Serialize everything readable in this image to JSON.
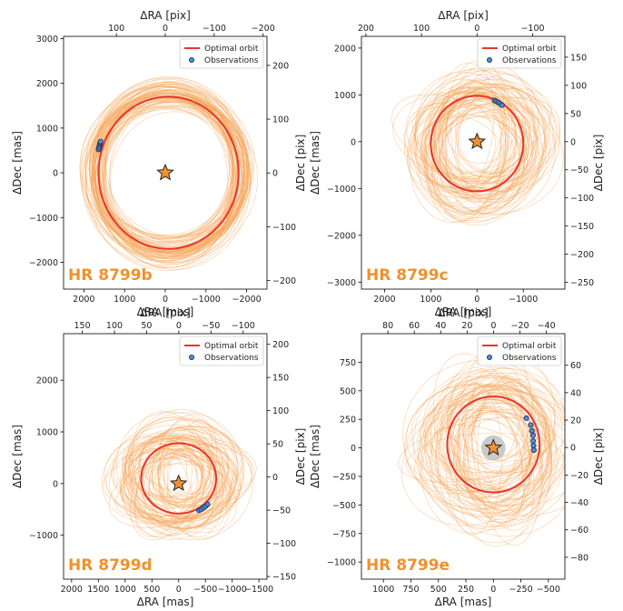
{
  "colors": {
    "orbit_fill": "#f0912f",
    "orbit_line": "#f5a559",
    "optimal": "#e8352b",
    "obs_fill": "#4a8fdc",
    "obs_edge": "#1a2a4a",
    "star": "#f0912f",
    "planet_label": "#f0912f",
    "mask": "#bdbdbd"
  },
  "legend": {
    "optimal": "Optimal orbit",
    "observations": "Observations"
  },
  "chart_data": [
    {
      "type": "scatter",
      "planet": "HR 8799b",
      "xlabel": "ΔRA [mas]",
      "ylabel": "ΔDec [mas]",
      "x2label": "ΔRA [pix]",
      "y2label": "ΔDec [pix]",
      "xlim": [
        2500,
        -2500
      ],
      "ylim": [
        -2600,
        3050
      ],
      "x2lim": [
        208,
        -208
      ],
      "y2lim": [
        -216,
        254
      ],
      "xticks": [
        2000,
        1000,
        0,
        -1000,
        -2000
      ],
      "xticklabels": [
        "2000",
        "1000",
        "0",
        "−1000",
        "−2000"
      ],
      "yticks": [
        -2000,
        -1000,
        0,
        1000,
        2000,
        3000
      ],
      "yticklabels": [
        "−2000",
        "−1000",
        "0",
        "1000",
        "2000",
        "3000"
      ],
      "x2ticks": [
        100,
        0,
        -100,
        -200
      ],
      "x2ticklabels": [
        "100",
        "0",
        "−100",
        "−200"
      ],
      "y2ticks": [
        -200,
        -100,
        0,
        100,
        200
      ],
      "y2ticklabels": [
        "−200",
        "−100",
        "0",
        "100",
        "200"
      ],
      "optimal_orbit": {
        "cx": -80,
        "cy": 0,
        "a": 1720,
        "b": 1700,
        "rot": 0
      },
      "orbit_family": {
        "count": 80,
        "dcx": 160,
        "dcy": 220,
        "da": 260,
        "db": 220,
        "drot": 15,
        "seed": 11
      },
      "observations": {
        "x": [
          1640,
          1630,
          1620,
          1610,
          1600,
          1590
        ],
        "y": [
          520,
          560,
          600,
          640,
          670,
          700
        ]
      },
      "mask": null
    },
    {
      "type": "scatter",
      "planet": "HR 8799c",
      "xlabel": "ΔRA [mas]",
      "ylabel": "ΔDec [mas]",
      "x2label": "ΔRA [pix]",
      "y2label": "ΔDec [pix]",
      "xlim": [
        2500,
        -1900
      ],
      "ylim": [
        -3150,
        2250
      ],
      "x2lim": [
        208,
        -158
      ],
      "y2lim": [
        -262,
        187
      ],
      "xticks": [
        2000,
        1000,
        0,
        -1000
      ],
      "xticklabels": [
        "2000",
        "1000",
        "0",
        "−1000"
      ],
      "yticks": [
        -3000,
        -2000,
        -1000,
        0,
        1000,
        2000
      ],
      "yticklabels": [
        "−3000",
        "−2000",
        "−1000",
        "0",
        "1000",
        "2000"
      ],
      "x2ticks": [
        200,
        100,
        0,
        -100
      ],
      "x2ticklabels": [
        "200",
        "100",
        "0",
        "−100"
      ],
      "y2ticks": [
        -250,
        -200,
        -150,
        -100,
        -50,
        0,
        50,
        100,
        150
      ],
      "y2ticklabels": [
        "−250",
        "−200",
        "−150",
        "−100",
        "−50",
        "0",
        "50",
        "100",
        "150"
      ],
      "optimal_orbit": {
        "cx": 0,
        "cy": -40,
        "a": 1000,
        "b": 1020,
        "rot": 0
      },
      "orbit_family": {
        "count": 80,
        "dcx": 420,
        "dcy": 320,
        "da": 460,
        "db": 420,
        "drot": 25,
        "seed": 23
      },
      "observations": {
        "x": [
          -380,
          -420,
          -460,
          -500,
          -540
        ],
        "y": [
          880,
          860,
          840,
          810,
          780
        ]
      },
      "mask": null
    },
    {
      "type": "scatter",
      "planet": "HR 8799d",
      "xlabel": "ΔRA [mas]",
      "ylabel": "ΔDec [mas]",
      "x2label": "ΔRA [pix]",
      "y2label": "ΔDec [pix]",
      "xlim": [
        2150,
        -1650
      ],
      "ylim": [
        -1850,
        2900
      ],
      "x2lim": [
        179,
        -137
      ],
      "y2lim": [
        -154,
        216
      ],
      "xticks": [
        2000,
        1500,
        1000,
        500,
        0,
        -500,
        -1000,
        -1500
      ],
      "xticklabels": [
        "2000",
        "1500",
        "1000",
        "500",
        "0",
        "−500",
        "−1000",
        "−1500"
      ],
      "yticks": [
        -1000,
        0,
        1000,
        2000
      ],
      "yticklabels": [
        "−1000",
        "0",
        "1000",
        "2000"
      ],
      "x2ticks": [
        150,
        100,
        50,
        0,
        -50,
        -100
      ],
      "x2ticklabels": [
        "150",
        "100",
        "50",
        "0",
        "−50",
        "−100"
      ],
      "y2ticks": [
        -150,
        -100,
        -50,
        0,
        50,
        100,
        150,
        200
      ],
      "y2ticklabels": [
        "−150",
        "−100",
        "−50",
        "0",
        "50",
        "100",
        "150",
        "200"
      ],
      "optimal_orbit": {
        "cx": 0,
        "cy": 100,
        "a": 700,
        "b": 680,
        "rot": 0
      },
      "orbit_family": {
        "count": 80,
        "dcx": 300,
        "dcy": 260,
        "da": 420,
        "db": 360,
        "drot": 30,
        "seed": 37
      },
      "observations": {
        "x": [
          -380,
          -420,
          -460,
          -500,
          -540
        ],
        "y": [
          -520,
          -500,
          -470,
          -440,
          -400
        ]
      },
      "mask": null
    },
    {
      "type": "scatter",
      "planet": "HR 8799e",
      "xlabel": "ΔRA [mas]",
      "ylabel": "ΔDec [mas]",
      "x2label": "ΔRA [pix]",
      "y2label": "ΔDec [pix]",
      "xlim": [
        1200,
        -650
      ],
      "ylim": [
        -1150,
        1000
      ],
      "x2lim": [
        100,
        -54
      ],
      "y2lim": [
        -96,
        83
      ],
      "xticks": [
        1000,
        750,
        500,
        250,
        0,
        -250,
        -500
      ],
      "xticklabels": [
        "1000",
        "750",
        "500",
        "250",
        "0",
        "−250",
        "−500"
      ],
      "yticks": [
        -1000,
        -750,
        -500,
        -250,
        0,
        250,
        500,
        750
      ],
      "yticklabels": [
        "−1000",
        "−750",
        "−500",
        "−250",
        "0",
        "250",
        "500",
        "750"
      ],
      "x2ticks": [
        80,
        60,
        40,
        20,
        0,
        -20,
        -40
      ],
      "x2ticklabels": [
        "80",
        "60",
        "40",
        "20",
        "0",
        "−20",
        "−40"
      ],
      "y2ticks": [
        -80,
        -60,
        -40,
        -20,
        0,
        20,
        40,
        60
      ],
      "y2ticklabels": [
        "−80",
        "−60",
        "−40",
        "−20",
        "0",
        "20",
        "40",
        "60"
      ],
      "optimal_orbit": {
        "cx": 0,
        "cy": 30,
        "a": 420,
        "b": 420,
        "rot": 0
      },
      "orbit_family": {
        "count": 80,
        "dcx": 180,
        "dcy": 170,
        "da": 260,
        "db": 260,
        "drot": 20,
        "seed": 51
      },
      "observations": {
        "x": [
          -300,
          -340,
          -350,
          -360,
          -362,
          -365,
          -368
        ],
        "y": [
          260,
          200,
          150,
          110,
          60,
          20,
          -20
        ]
      },
      "mask": {
        "r": 110
      }
    }
  ]
}
